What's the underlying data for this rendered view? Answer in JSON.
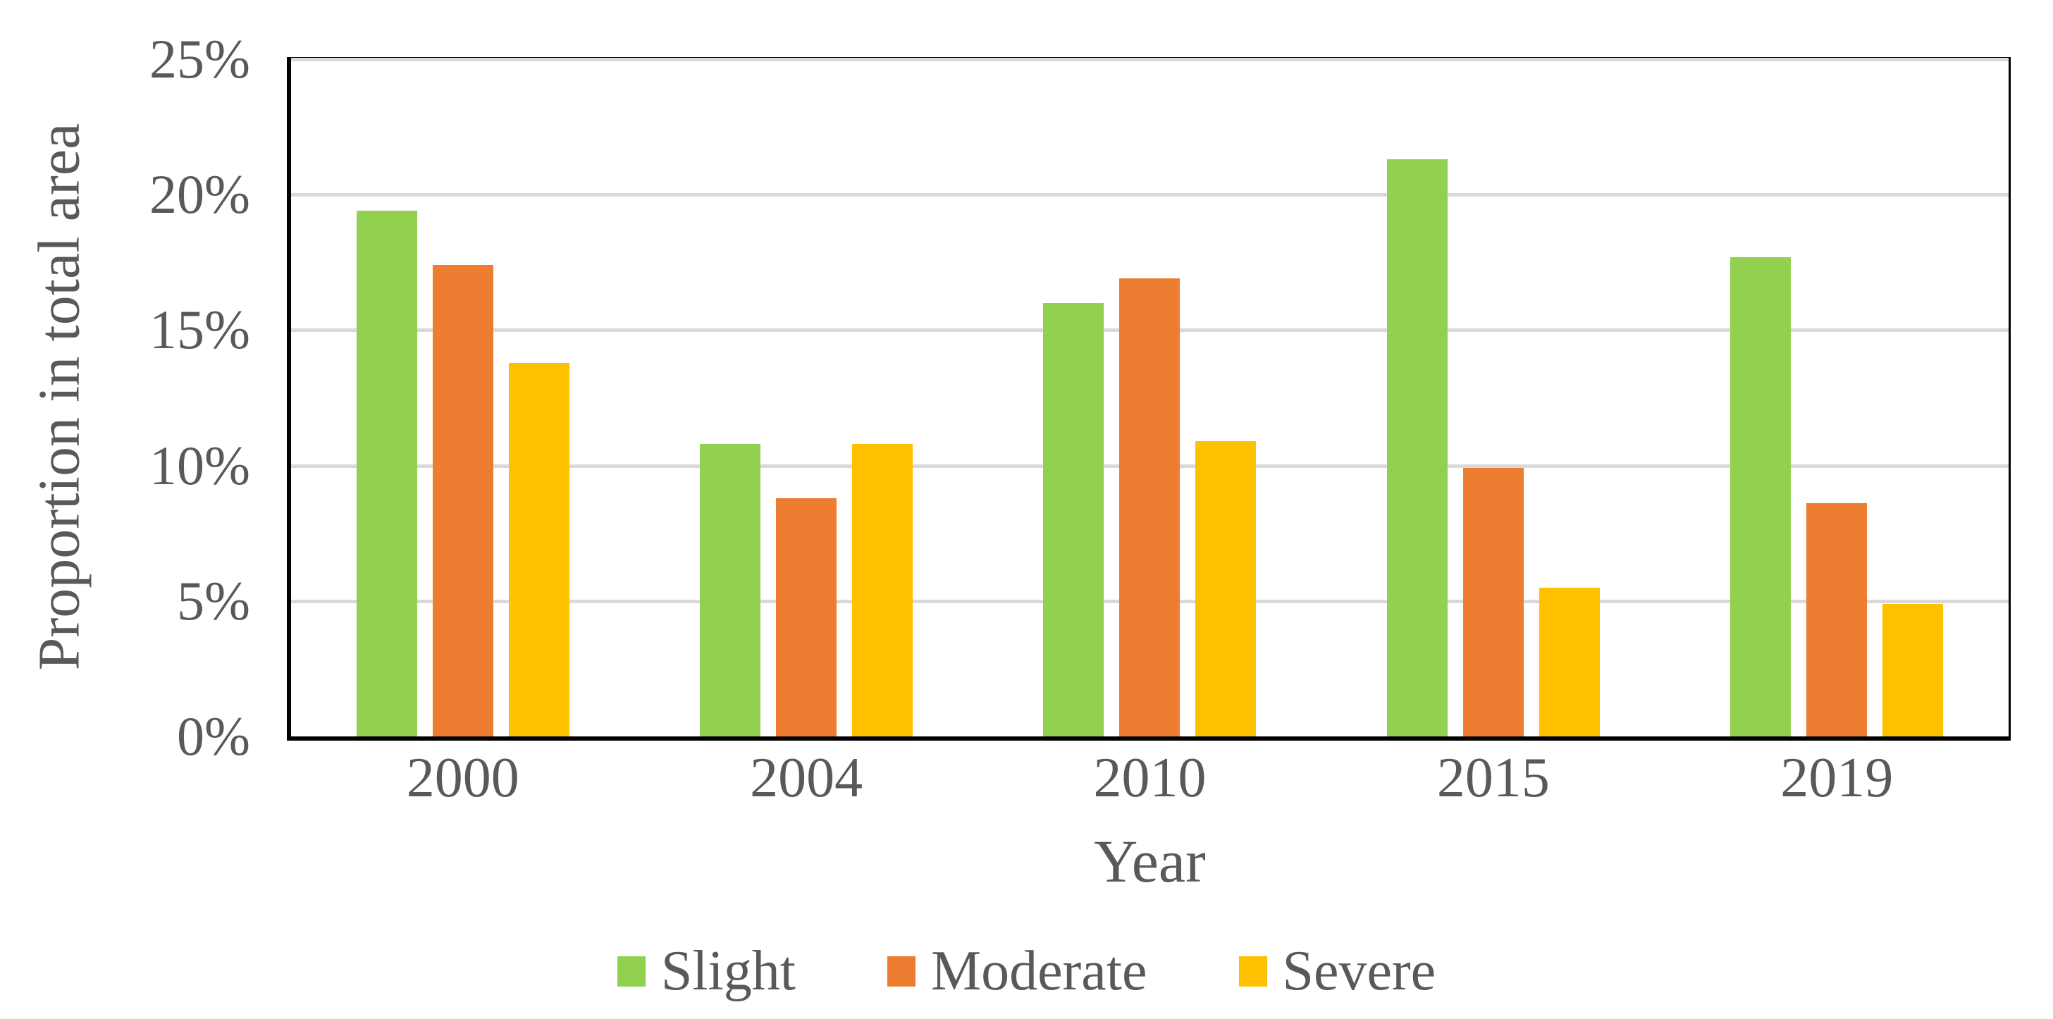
{
  "chart_data": {
    "type": "bar",
    "title": "",
    "xlabel": "Year",
    "ylabel": "Proportion in total area",
    "categories": [
      "2000",
      "2004",
      "2010",
      "2015",
      "2019"
    ],
    "series": [
      {
        "name": "Slight",
        "color": "#92D050",
        "values": [
          19.4,
          10.8,
          16.0,
          21.3,
          17.7
        ]
      },
      {
        "name": "Moderate",
        "color": "#ED7D31",
        "values": [
          17.4,
          8.8,
          16.9,
          9.9,
          8.6
        ]
      },
      {
        "name": "Severe",
        "color": "#FFC000",
        "values": [
          13.8,
          10.8,
          10.9,
          5.5,
          4.9
        ]
      }
    ],
    "unit": "percent",
    "ylim": [
      0,
      25
    ],
    "yticks": [
      0,
      5,
      10,
      15,
      20,
      25
    ],
    "ytick_labels": [
      "0%",
      "5%",
      "10%",
      "15%",
      "20%",
      "25%"
    ],
    "grid": "horizontal",
    "legend_position": "bottom",
    "colors": {
      "text": "#595959",
      "gridline": "#D9D9D9",
      "axis": "#000000",
      "background": "#FFFFFF"
    }
  }
}
